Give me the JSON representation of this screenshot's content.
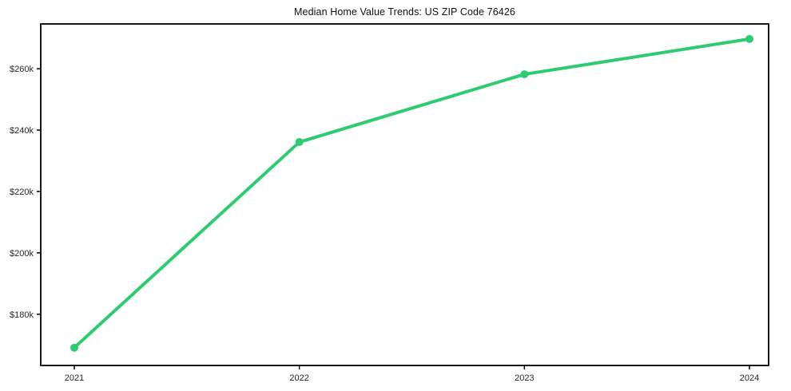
{
  "page": {
    "background_color": "#ffffff"
  },
  "chart_data": {
    "type": "line",
    "title": "Median Home Value Trends: US ZIP Code 76426",
    "xlabel": "",
    "ylabel": "",
    "grid": false,
    "legend": "none",
    "x": [
      2021,
      2022,
      2023,
      2024
    ],
    "x_tick_labels": [
      "2021",
      "2022",
      "2023",
      "2024"
    ],
    "y_ticks": [
      180000,
      200000,
      220000,
      240000,
      260000
    ],
    "y_tick_labels": [
      "$180k",
      "$200k",
      "$220k",
      "$240k",
      "$260k"
    ],
    "ylim": [
      163300,
      274600
    ],
    "series": [
      {
        "name": "Median Home Value",
        "values": [
          169100,
          236100,
          258200,
          269700
        ],
        "color": "#2ecc71",
        "marker": "circle"
      }
    ],
    "axis_color": "#000000",
    "tick_label_color": "#262626"
  }
}
